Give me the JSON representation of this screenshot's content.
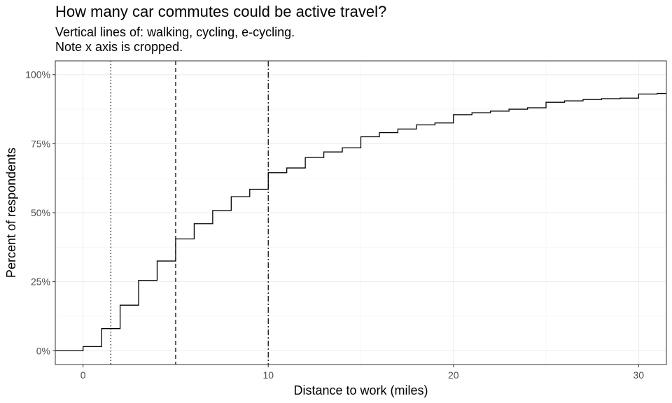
{
  "chart_data": {
    "type": "line",
    "step": true,
    "title": "How many car commutes could be active travel?",
    "subtitle_lines": [
      "Vertical lines of: walking, cycling, e-cycling.",
      "Note x axis is cropped."
    ],
    "xlabel": "Distance to work (miles)",
    "ylabel": "Percent of respondents",
    "xlim": [
      -1.5,
      31.5
    ],
    "ylim": [
      -0.05,
      1.05
    ],
    "x_ticks": [
      0,
      10,
      20,
      30
    ],
    "x_tick_labels": [
      "0",
      "10",
      "20",
      "30"
    ],
    "y_ticks": [
      0,
      0.25,
      0.5,
      0.75,
      1.0
    ],
    "y_tick_labels": [
      "0%",
      "25%",
      "50%",
      "75%",
      "100%"
    ],
    "grid": true,
    "series": [
      {
        "x": [
          0,
          1,
          2,
          3,
          4,
          5,
          6,
          7,
          8,
          9,
          10,
          11,
          12,
          13,
          14,
          15,
          16,
          17,
          18,
          19,
          20,
          21,
          22,
          23,
          24,
          25,
          26,
          27,
          28,
          29,
          30,
          31
        ],
        "y": [
          0.015,
          0.08,
          0.165,
          0.255,
          0.325,
          0.405,
          0.46,
          0.508,
          0.558,
          0.585,
          0.645,
          0.662,
          0.7,
          0.72,
          0.735,
          0.775,
          0.79,
          0.803,
          0.818,
          0.825,
          0.855,
          0.862,
          0.868,
          0.875,
          0.88,
          0.9,
          0.905,
          0.91,
          0.913,
          0.915,
          0.93,
          0.932
        ]
      }
    ],
    "vertical_lines": [
      {
        "x": 1.5,
        "style": "dotted"
      },
      {
        "x": 5,
        "style": "dashed"
      },
      {
        "x": 10,
        "style": "dashdot"
      }
    ]
  }
}
